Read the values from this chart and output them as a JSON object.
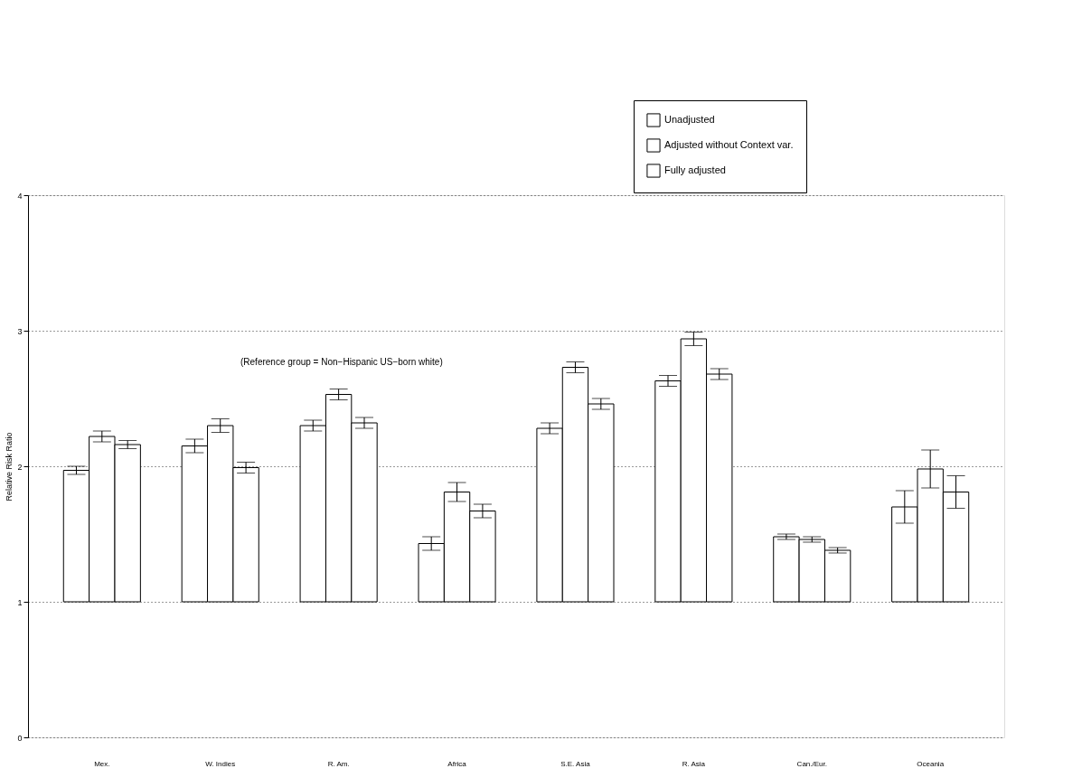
{
  "chart_data": {
    "type": "bar",
    "ylabel": "Relative Risk Ratio",
    "categories": [
      "Mex.",
      "W. Indies",
      "R. Am.",
      "Africa",
      "S.E. Asia",
      "R. Asia",
      "Can./Eur.",
      "Oceania"
    ],
    "series": [
      {
        "name": "Unadjusted",
        "color": "#ffffff",
        "base": [
          1,
          1,
          1,
          1,
          1,
          1,
          1,
          1
        ],
        "values": [
          0.97,
          1.15,
          1.3,
          0.43,
          1.28,
          1.63,
          0.48,
          0.7
        ],
        "errors": [
          0.03,
          0.05,
          0.04,
          0.05,
          0.04,
          0.04,
          0.02,
          0.12
        ]
      },
      {
        "name": "Adjusted without Context var.",
        "color": "#ffffff",
        "base": [
          1,
          1,
          1,
          1,
          1,
          1,
          1,
          1
        ],
        "values": [
          1.22,
          1.3,
          1.53,
          0.81,
          1.73,
          1.94,
          0.46,
          0.98
        ],
        "errors": [
          0.04,
          0.05,
          0.04,
          0.07,
          0.04,
          0.05,
          0.02,
          0.14
        ]
      },
      {
        "name": "Fully adjusted",
        "color": "#ffffff",
        "base": [
          1,
          1,
          1,
          1,
          1,
          1,
          1,
          1
        ],
        "values": [
          1.16,
          0.99,
          1.32,
          0.67,
          1.46,
          1.68,
          0.38,
          0.81
        ],
        "errors": [
          0.03,
          0.04,
          0.04,
          0.05,
          0.04,
          0.04,
          0.02,
          0.12
        ]
      }
    ],
    "ylim": [
      0,
      4
    ],
    "yticks": [
      0,
      1,
      2,
      3,
      4
    ],
    "grid": "y",
    "legend": "top right",
    "annotations": [
      "(Reference group = Non−Hispanic US−born white)"
    ]
  }
}
